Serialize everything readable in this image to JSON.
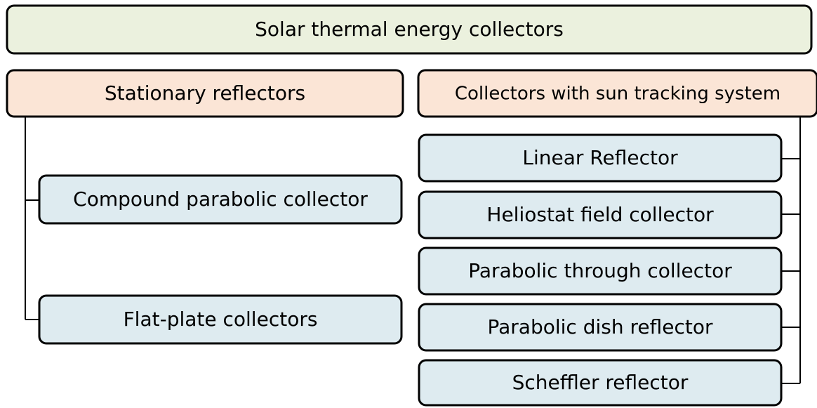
{
  "title": "Solar thermal energy collectors",
  "groups": [
    {
      "label": "Stationary reflectors",
      "items": [
        "Compound parabolic collector",
        "Flat-plate collectors"
      ]
    },
    {
      "label": "Collectors with sun tracking system",
      "items": [
        "Linear Reflector",
        "Heliostat field collector",
        "Parabolic through collector",
        "Parabolic dish reflector",
        "Scheffler reflector"
      ]
    }
  ]
}
